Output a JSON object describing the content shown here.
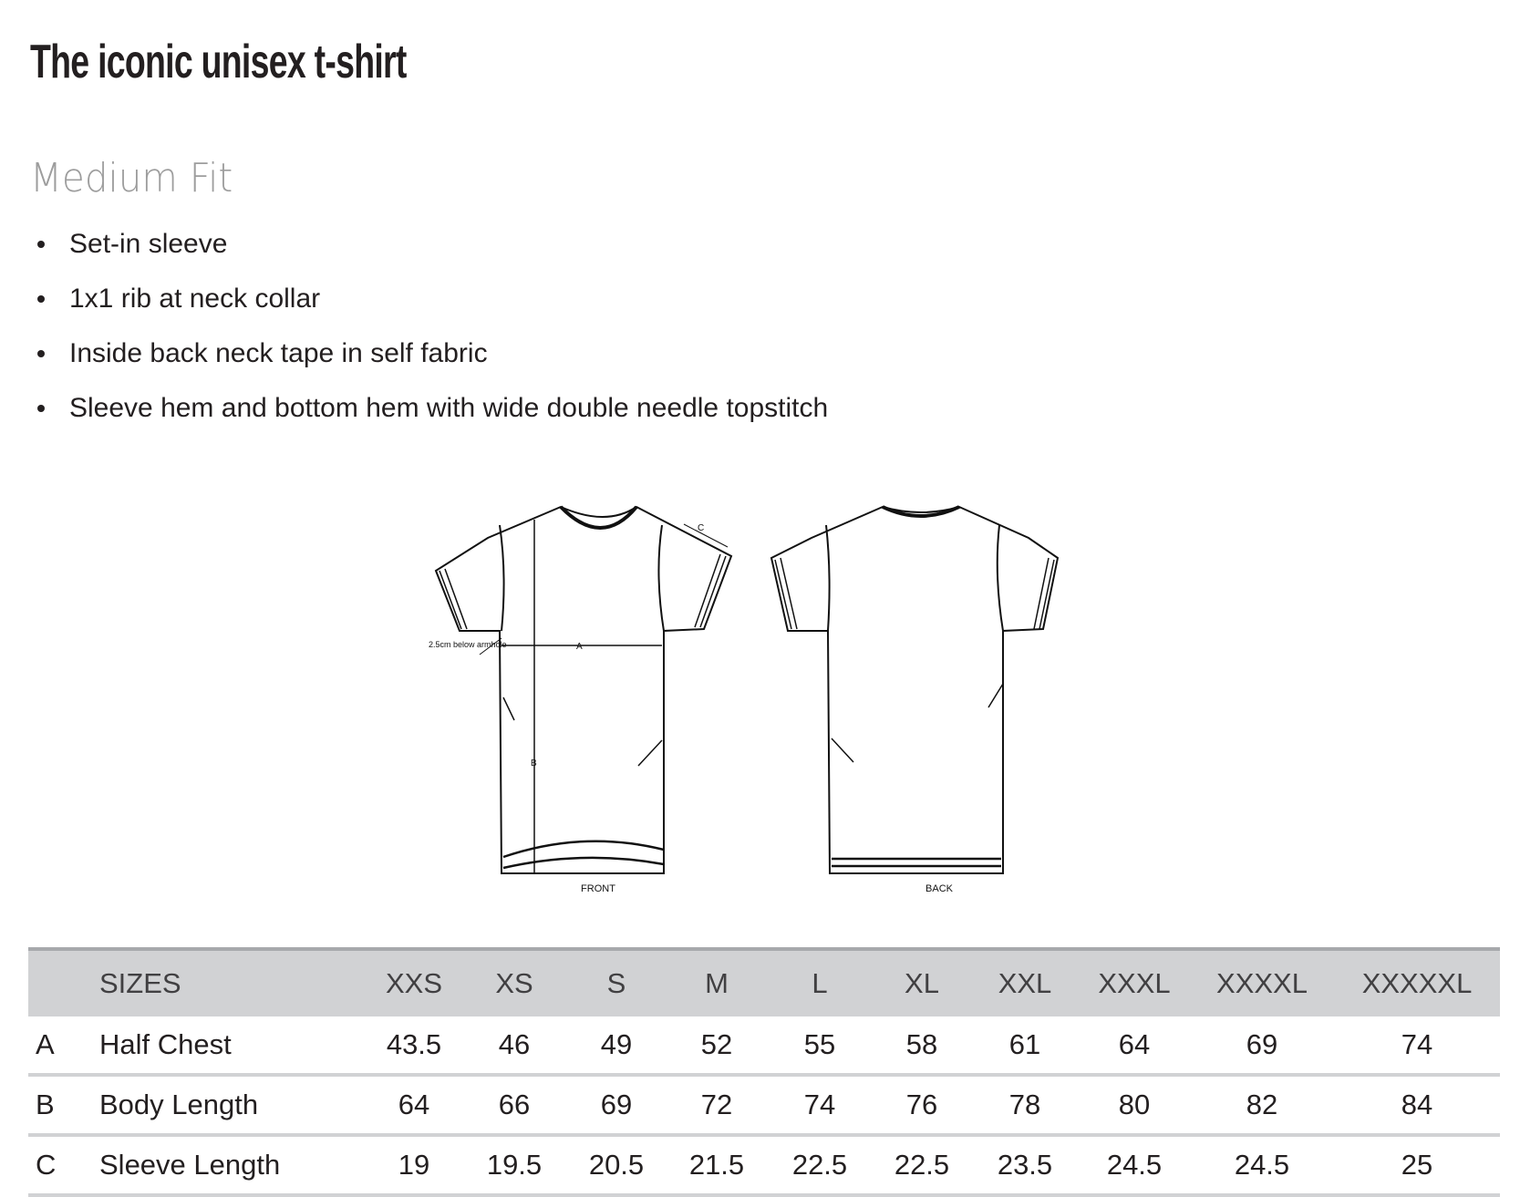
{
  "title": "The iconic unisex t-shirt",
  "subtitle": "Medium Fit",
  "features": [
    "Set-in sleeve",
    "1x1 rib at neck collar",
    "Inside back neck tape in self fabric",
    "Sleeve hem and bottom hem with wide double needle topstitch"
  ],
  "diagram": {
    "front_label": "FRONT",
    "back_label": "BACK",
    "annotation": "2.5cm below armhole",
    "marker_a": "A",
    "marker_b": "B",
    "marker_c": "C"
  },
  "table": {
    "header_label": "SIZES",
    "sizes": [
      "XXS",
      "XS",
      "S",
      "M",
      "L",
      "XL",
      "XXL",
      "XXXL",
      "XXXXL",
      "XXXXXL"
    ],
    "rows": [
      {
        "code": "A",
        "label": "Half Chest",
        "values": [
          "43.5",
          "46",
          "49",
          "52",
          "55",
          "58",
          "61",
          "64",
          "69",
          "74"
        ]
      },
      {
        "code": "B",
        "label": "Body Length",
        "values": [
          "64",
          "66",
          "69",
          "72",
          "74",
          "76",
          "78",
          "80",
          "82",
          "84"
        ]
      },
      {
        "code": "C",
        "label": "Sleeve Length",
        "values": [
          "19",
          "19.5",
          "20.5",
          "21.5",
          "22.5",
          "22.5",
          "23.5",
          "24.5",
          "24.5",
          "25"
        ]
      }
    ]
  }
}
